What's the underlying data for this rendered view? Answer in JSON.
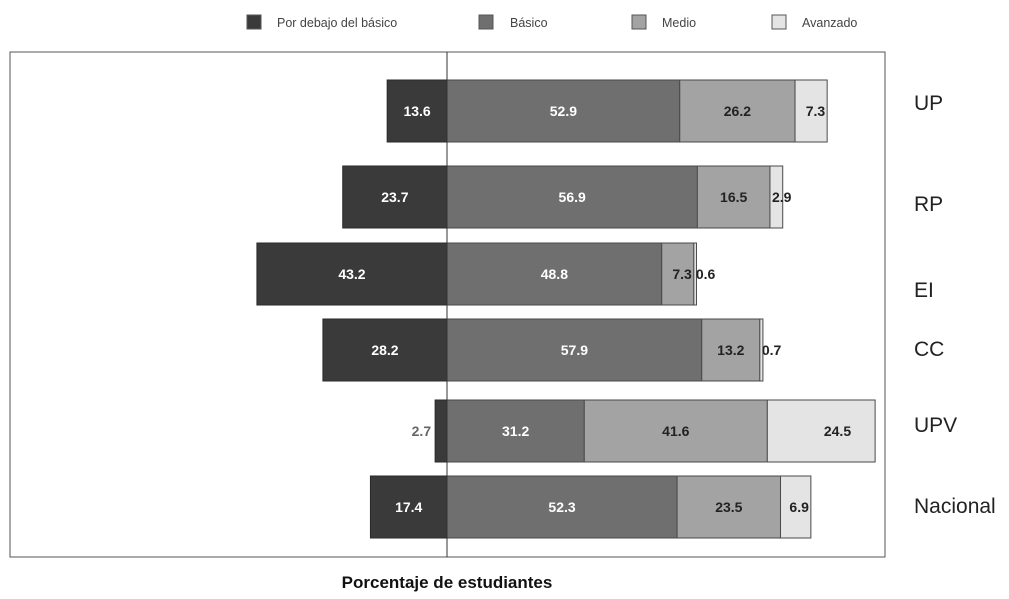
{
  "chart_data": {
    "type": "bar",
    "orientation": "horizontal",
    "stacked": "diverging",
    "xlabel": "Porcentaje de estudiantes",
    "categories": [
      "UP",
      "RP",
      "EI",
      "CC",
      "UPV",
      "Nacional"
    ],
    "series": [
      {
        "name": "Por debajo del básico",
        "color": "#3a3a3a",
        "values": [
          13.6,
          23.7,
          43.2,
          28.2,
          2.7,
          17.4
        ]
      },
      {
        "name": "Básico",
        "color": "#6f6f6f",
        "values": [
          52.9,
          56.9,
          48.8,
          57.9,
          31.2,
          52.3
        ]
      },
      {
        "name": "Medio",
        "color": "#a3a3a3",
        "values": [
          26.2,
          16.5,
          7.3,
          13.2,
          41.6,
          23.5
        ]
      },
      {
        "name": "Avanzado",
        "color": "#e4e4e4",
        "values": [
          7.3,
          2.9,
          0.6,
          0.7,
          24.5,
          6.9
        ]
      }
    ],
    "diverging_baseline": "between Por debajo del básico and Básico",
    "legend_position": "top",
    "grid": false
  }
}
